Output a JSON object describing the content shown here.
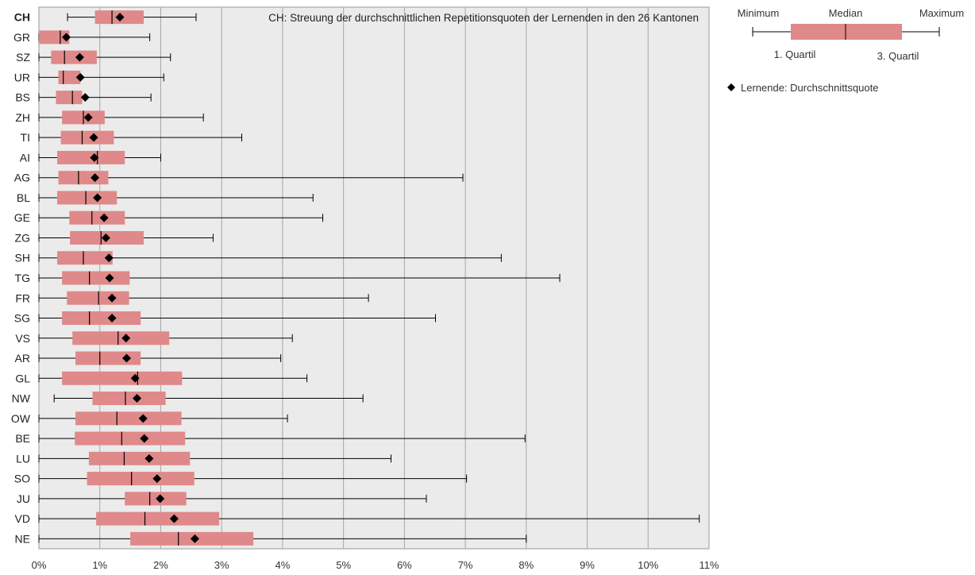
{
  "chart_data": {
    "type": "boxplot",
    "title": "CH: Streuung der durchschnittlichen Repetitionsquoten der Lernenden in den 26 Kantonen",
    "xlim": [
      0,
      11
    ],
    "x_ticks": [
      "0%",
      "1%",
      "2%",
      "3%",
      "4%",
      "5%",
      "6%",
      "7%",
      "8%",
      "9%",
      "10%",
      "11%"
    ],
    "grid": true,
    "colors": {
      "box": "#e0898a",
      "plot_bg": "#ebebeb",
      "grid": "#a6a6a6",
      "whisker": "#000000",
      "mean_marker": "#000000"
    },
    "legend": {
      "minimum": "Minimum",
      "median": "Median",
      "maximum": "Maximum",
      "q1": "1. Quartil",
      "q3": "3. Quartil",
      "mean": "Lernende: Durchschnittsquote",
      "placement": "top-right"
    },
    "series": [
      {
        "name": "CH",
        "min": 0.47,
        "q1": 0.92,
        "median": 1.2,
        "q3": 1.72,
        "max": 2.58,
        "mean": 1.33,
        "bold": true
      },
      {
        "name": "GR",
        "min": 0.0,
        "q1": 0.0,
        "median": 0.35,
        "q3": 0.5,
        "max": 1.82,
        "mean": 0.45
      },
      {
        "name": "SZ",
        "min": 0.0,
        "q1": 0.2,
        "median": 0.42,
        "q3": 0.95,
        "max": 2.16,
        "mean": 0.67
      },
      {
        "name": "UR",
        "min": 0.0,
        "q1": 0.32,
        "median": 0.4,
        "q3": 0.68,
        "max": 2.05,
        "mean": 0.68
      },
      {
        "name": "BS",
        "min": 0.0,
        "q1": 0.28,
        "median": 0.55,
        "q3": 0.71,
        "max": 1.84,
        "mean": 0.76
      },
      {
        "name": "ZH",
        "min": 0.0,
        "q1": 0.38,
        "median": 0.73,
        "q3": 1.08,
        "max": 2.7,
        "mean": 0.81
      },
      {
        "name": "TI",
        "min": 0.0,
        "q1": 0.36,
        "median": 0.71,
        "q3": 1.23,
        "max": 3.33,
        "mean": 0.9
      },
      {
        "name": "AI",
        "min": 0.0,
        "q1": 0.3,
        "median": 0.96,
        "q3": 1.41,
        "max": 2.0,
        "mean": 0.91
      },
      {
        "name": "AG",
        "min": 0.0,
        "q1": 0.32,
        "median": 0.65,
        "q3": 1.14,
        "max": 6.96,
        "mean": 0.92
      },
      {
        "name": "BL",
        "min": 0.0,
        "q1": 0.3,
        "median": 0.77,
        "q3": 1.28,
        "max": 4.5,
        "mean": 0.96
      },
      {
        "name": "GE",
        "min": 0.0,
        "q1": 0.5,
        "median": 0.87,
        "q3": 1.41,
        "max": 4.66,
        "mean": 1.07
      },
      {
        "name": "ZG",
        "min": 0.0,
        "q1": 0.51,
        "median": 1.02,
        "q3": 1.72,
        "max": 2.86,
        "mean": 1.1
      },
      {
        "name": "SH",
        "min": 0.0,
        "q1": 0.3,
        "median": 0.73,
        "q3": 1.21,
        "max": 7.59,
        "mean": 1.15
      },
      {
        "name": "TG",
        "min": 0.0,
        "q1": 0.38,
        "median": 0.83,
        "q3": 1.49,
        "max": 8.55,
        "mean": 1.16
      },
      {
        "name": "FR",
        "min": 0.0,
        "q1": 0.46,
        "median": 0.98,
        "q3": 1.48,
        "max": 5.41,
        "mean": 1.2
      },
      {
        "name": "SG",
        "min": 0.0,
        "q1": 0.38,
        "median": 0.83,
        "q3": 1.67,
        "max": 6.51,
        "mean": 1.2
      },
      {
        "name": "VS",
        "min": 0.0,
        "q1": 0.55,
        "median": 1.3,
        "q3": 2.14,
        "max": 4.16,
        "mean": 1.43
      },
      {
        "name": "AR",
        "min": 0.0,
        "q1": 0.6,
        "median": 1.0,
        "q3": 1.67,
        "max": 3.97,
        "mean": 1.44
      },
      {
        "name": "GL",
        "min": 0.0,
        "q1": 0.38,
        "median": 1.62,
        "q3": 2.35,
        "max": 4.4,
        "mean": 1.58
      },
      {
        "name": "NW",
        "min": 0.25,
        "q1": 0.88,
        "median": 1.42,
        "q3": 2.08,
        "max": 5.32,
        "mean": 1.61
      },
      {
        "name": "OW",
        "min": 0.0,
        "q1": 0.6,
        "median": 1.28,
        "q3": 2.34,
        "max": 4.08,
        "mean": 1.71
      },
      {
        "name": "BE",
        "min": 0.0,
        "q1": 0.59,
        "median": 1.36,
        "q3": 2.4,
        "max": 7.98,
        "mean": 1.73
      },
      {
        "name": "LU",
        "min": 0.0,
        "q1": 0.82,
        "median": 1.4,
        "q3": 2.48,
        "max": 5.78,
        "mean": 1.81
      },
      {
        "name": "SO",
        "min": 0.0,
        "q1": 0.79,
        "median": 1.52,
        "q3": 2.55,
        "max": 7.02,
        "mean": 1.94
      },
      {
        "name": "JU",
        "min": 0.0,
        "q1": 1.41,
        "median": 1.82,
        "q3": 2.42,
        "max": 6.36,
        "mean": 1.99
      },
      {
        "name": "VD",
        "min": 0.0,
        "q1": 0.94,
        "median": 1.74,
        "q3": 2.96,
        "max": 10.84,
        "mean": 2.22
      },
      {
        "name": "NE",
        "min": 0.0,
        "q1": 1.5,
        "median": 2.29,
        "q3": 3.52,
        "max": 8.0,
        "mean": 2.56
      }
    ]
  }
}
